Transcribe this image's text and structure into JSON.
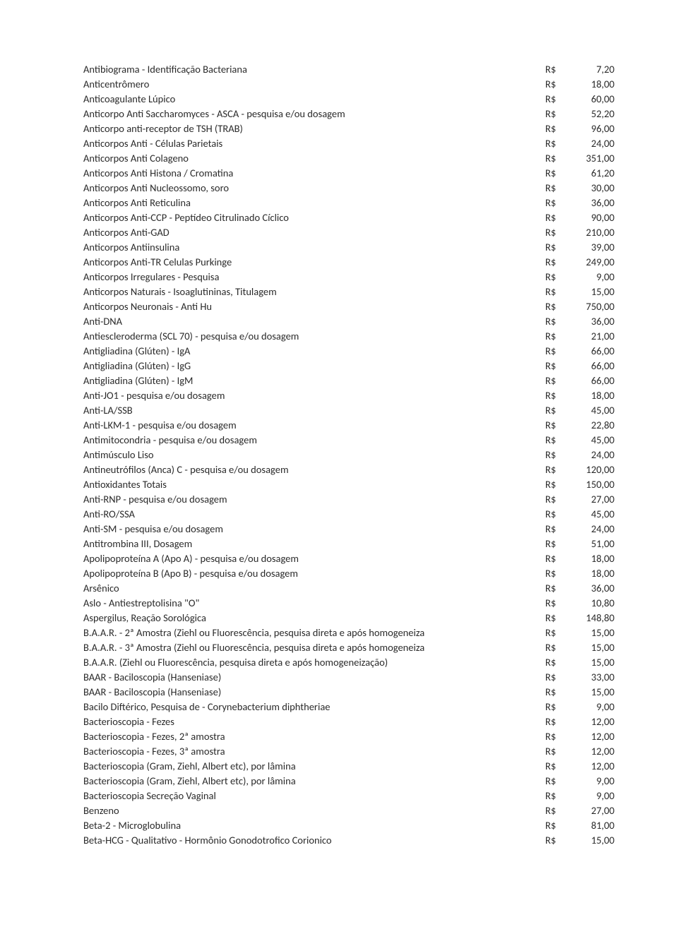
{
  "currency_label": "R$",
  "items": [
    {
      "name": "Antibiograma - Identificação Bacteriana",
      "price": "7,20"
    },
    {
      "name": "Anticentrômero",
      "price": "18,00"
    },
    {
      "name": "Anticoagulante Lúpico",
      "price": "60,00"
    },
    {
      "name": "Anticorpo Anti Saccharomyces - ASCA - pesquisa e/ou dosagem",
      "price": "52,20"
    },
    {
      "name": "Anticorpo anti-receptor de TSH (TRAB)",
      "price": "96,00"
    },
    {
      "name": "Anticorpos Anti - Células Parietais",
      "price": "24,00"
    },
    {
      "name": "Anticorpos Anti Colageno",
      "price": "351,00"
    },
    {
      "name": "Anticorpos Anti Histona / Cromatina",
      "price": "61,20"
    },
    {
      "name": "Anticorpos Anti Nucleossomo, soro",
      "price": "30,00"
    },
    {
      "name": "Anticorpos Anti Reticulina",
      "price": "36,00"
    },
    {
      "name": "Anticorpos Anti-CCP - Peptídeo Citrulinado Cíclico",
      "price": "90,00"
    },
    {
      "name": "Anticorpos Anti-GAD",
      "price": "210,00"
    },
    {
      "name": "Anticorpos Antiinsulina",
      "price": "39,00"
    },
    {
      "name": "Anticorpos Anti-TR Celulas Purkinge",
      "price": "249,00"
    },
    {
      "name": "Anticorpos Irregulares - Pesquisa",
      "price": "9,00"
    },
    {
      "name": "Anticorpos Naturais - Isoaglutininas, Titulagem",
      "price": "15,00"
    },
    {
      "name": "Anticorpos Neuronais - Anti Hu",
      "price": "750,00"
    },
    {
      "name": "Anti-DNA",
      "price": "36,00"
    },
    {
      "name": "Antiescleroderma (SCL 70) - pesquisa e/ou dosagem",
      "price": "21,00"
    },
    {
      "name": "Antigliadina (Glúten) - IgA",
      "price": "66,00"
    },
    {
      "name": "Antigliadina (Glúten) - IgG",
      "price": "66,00"
    },
    {
      "name": "Antigliadina (Glúten) - IgM",
      "price": "66,00"
    },
    {
      "name": "Anti-JO1 - pesquisa e/ou dosagem",
      "price": "18,00"
    },
    {
      "name": "Anti-LA/SSB",
      "price": "45,00"
    },
    {
      "name": "Anti-LKM-1 - pesquisa e/ou dosagem",
      "price": "22,80"
    },
    {
      "name": "Antimitocondria - pesquisa e/ou dosagem",
      "price": "45,00"
    },
    {
      "name": "Antimúsculo Liso",
      "price": "24,00"
    },
    {
      "name": "Antineutrófilos (Anca) C - pesquisa e/ou dosagem",
      "price": "120,00"
    },
    {
      "name": "Antioxidantes Totais",
      "price": "150,00"
    },
    {
      "name": "Anti-RNP - pesquisa e/ou dosagem",
      "price": "27,00"
    },
    {
      "name": "Anti-RO/SSA",
      "price": "45,00"
    },
    {
      "name": "Anti-SM - pesquisa e/ou dosagem",
      "price": "24,00"
    },
    {
      "name": "Antitrombina III, Dosagem",
      "price": "51,00"
    },
    {
      "name": "Apolipoproteína A (Apo A) - pesquisa e/ou dosagem",
      "price": "18,00"
    },
    {
      "name": "Apolipoproteína B (Apo B) - pesquisa e/ou dosagem",
      "price": "18,00"
    },
    {
      "name": "Arsênico",
      "price": "36,00"
    },
    {
      "name": "Aslo - Antiestreptolisina \"O\"",
      "price": "10,80"
    },
    {
      "name": "Aspergilus, Reação Sorológica",
      "price": "148,80"
    },
    {
      "name": "B.A.A.R. - 2ª Amostra (Ziehl ou Fluorescência, pesquisa direta e após homogeneiza",
      "price": "15,00"
    },
    {
      "name": "B.A.A.R. - 3ª Amostra (Ziehl ou Fluorescência, pesquisa direta e após homogeneiza",
      "price": "15,00"
    },
    {
      "name": "B.A.A.R. (Ziehl ou Fluorescência, pesquisa direta e após homogeneização)",
      "price": "15,00"
    },
    {
      "name": "BAAR - Baciloscopia (Hanseniase)",
      "price": "33,00"
    },
    {
      "name": "BAAR - Baciloscopia (Hanseniase)",
      "price": "15,00"
    },
    {
      "name": "Bacilo Diftérico, Pesquisa de - Corynebacterium diphtheriae",
      "price": "9,00"
    },
    {
      "name": "Bacterioscopia - Fezes",
      "price": "12,00"
    },
    {
      "name": "Bacterioscopia - Fezes, 2ª amostra",
      "price": "12,00"
    },
    {
      "name": "Bacterioscopia - Fezes, 3ª amostra",
      "price": "12,00"
    },
    {
      "name": "Bacterioscopia (Gram, Ziehl, Albert etc), por lâmina",
      "price": "12,00"
    },
    {
      "name": "Bacterioscopia (Gram, Ziehl, Albert etc), por lâmina",
      "price": "9,00"
    },
    {
      "name": "Bacterioscopia Secreção Vaginal",
      "price": "9,00"
    },
    {
      "name": "Benzeno",
      "price": "27,00"
    },
    {
      "name": "Beta-2 - Microglobulina",
      "price": "81,00"
    },
    {
      "name": "Beta-HCG - Qualitativo - Hormônio Gonodotrofico Corionico",
      "price": "15,00"
    }
  ]
}
